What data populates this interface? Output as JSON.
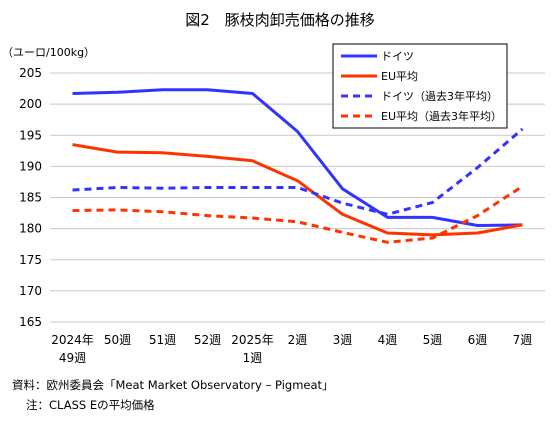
{
  "chart_data": {
    "type": "line",
    "title": "図2　豚枝肉卸売価格の推移",
    "ylabel": "（ユーロ/100kg）",
    "xlabel": "",
    "ylim": [
      165,
      205
    ],
    "yticks": [
      165,
      170,
      175,
      180,
      185,
      190,
      195,
      200,
      205
    ],
    "categories": [
      [
        "2024年",
        "49週"
      ],
      [
        "50週"
      ],
      [
        "51週"
      ],
      [
        "52週"
      ],
      [
        "2025年",
        "1週"
      ],
      [
        "2週"
      ],
      [
        "3週"
      ],
      [
        "4週"
      ],
      [
        "5週"
      ],
      [
        "6週"
      ],
      [
        "7週"
      ]
    ],
    "grid": true,
    "legend_position": "top-right",
    "series": [
      {
        "name": "ドイツ",
        "color": "#3333ff",
        "dashed": false,
        "values": [
          201.7,
          201.9,
          202.3,
          202.3,
          201.7,
          195.6,
          186.4,
          181.8,
          181.8,
          180.5,
          180.6
        ]
      },
      {
        "name": "EU平均",
        "color": "#ff3300",
        "dashed": false,
        "values": [
          193.5,
          192.3,
          192.2,
          191.6,
          190.9,
          187.7,
          182.3,
          179.3,
          179.0,
          179.3,
          180.6
        ]
      },
      {
        "name": "ドイツ（過去3年平均）",
        "color": "#3333ff",
        "dashed": true,
        "values": [
          186.2,
          186.6,
          186.5,
          186.6,
          186.6,
          186.6,
          184.1,
          182.3,
          184.2,
          189.8,
          196.0
        ]
      },
      {
        "name": "EU平均（過去3年平均）",
        "color": "#ff3300",
        "dashed": true,
        "values": [
          182.9,
          183.0,
          182.7,
          182.1,
          181.7,
          181.1,
          179.4,
          177.8,
          178.5,
          182.1,
          186.8
        ]
      }
    ]
  },
  "notes": {
    "source": "資料：欧州委員会「Meat Market Observatory – Pigmeat」",
    "footnote": "注：CLASS Eの平均価格"
  }
}
